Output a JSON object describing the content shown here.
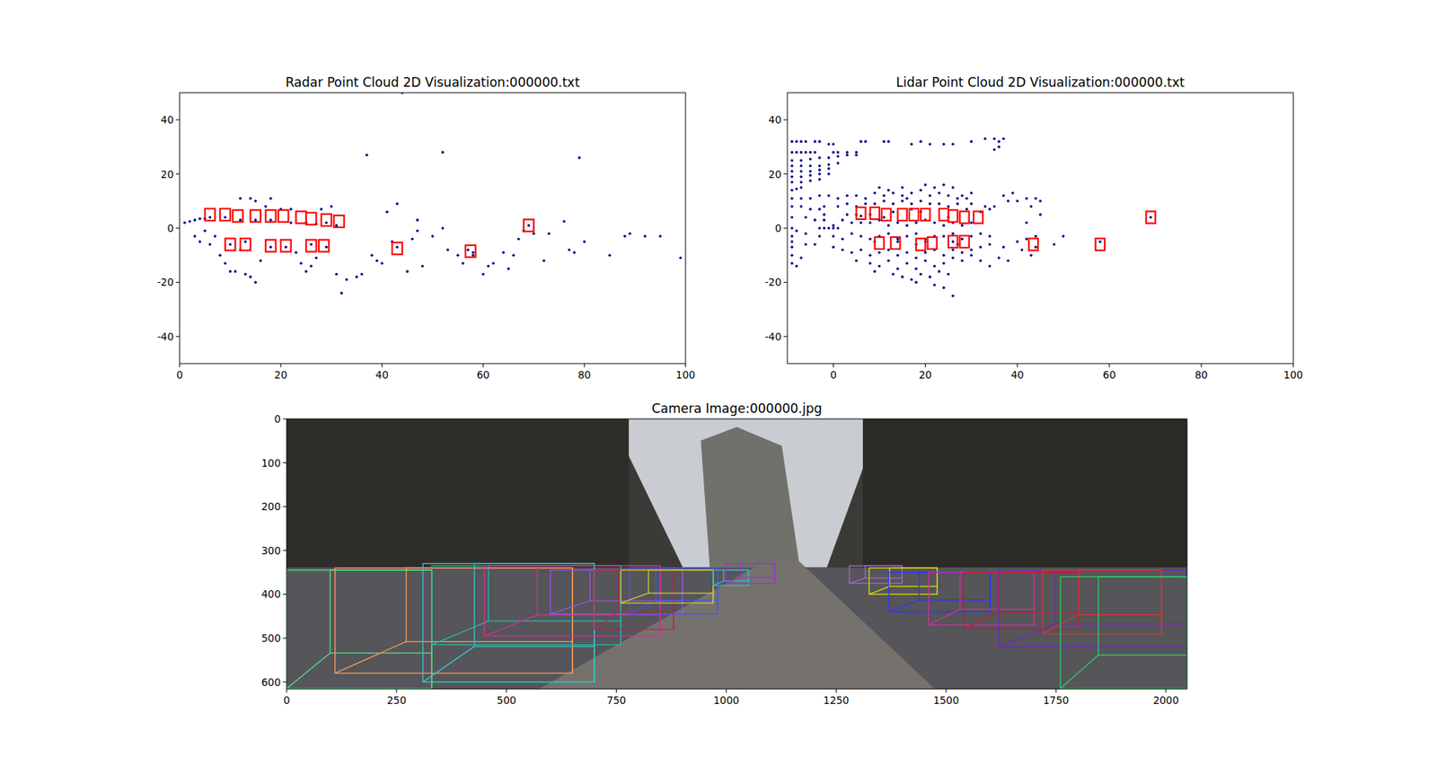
{
  "chart_data": [
    {
      "type": "scatter",
      "title": "Radar Point Cloud 2D Visualization:000000.txt",
      "xlim": [
        0,
        100
      ],
      "ylim": [
        -50,
        50
      ],
      "xticks": [
        0,
        20,
        40,
        60,
        80,
        100
      ],
      "yticks": [
        -40,
        -20,
        0,
        20,
        40
      ],
      "color": "#00008b",
      "x": [
        1,
        2,
        3,
        4,
        5,
        3,
        4,
        5,
        6,
        7,
        8,
        9,
        10,
        11,
        12,
        13,
        14,
        15,
        16,
        12,
        14,
        15,
        17,
        18,
        20,
        22,
        23,
        24,
        25,
        26,
        27,
        28,
        30,
        31,
        32,
        33,
        35,
        36,
        38,
        39,
        40,
        37,
        41,
        43,
        44,
        42,
        45,
        47,
        48,
        52,
        52,
        53,
        55,
        56,
        57,
        58,
        60,
        61,
        62,
        65,
        66,
        67,
        68,
        69,
        70,
        72,
        73,
        77,
        78,
        79,
        80,
        85,
        88,
        89,
        92,
        95,
        99,
        22,
        25,
        27,
        29,
        31,
        6,
        9,
        12,
        15,
        18,
        10,
        13,
        18,
        21,
        26,
        29,
        43,
        58,
        76,
        64,
        46,
        50,
        47
      ],
      "y": [
        2,
        2.5,
        3,
        3.5,
        3.5,
        -3,
        -5,
        -1,
        -6,
        -3,
        -10,
        -13,
        -16,
        -16,
        -8,
        -17,
        -18,
        -20,
        -12,
        11,
        11,
        10,
        8,
        11,
        7,
        7,
        -9,
        -13,
        -16,
        -14,
        -11,
        7,
        8,
        -17,
        -24,
        -19,
        -18,
        -17,
        -10,
        -12,
        -13,
        27,
        6,
        9,
        50,
        -5,
        -16,
        3,
        -14,
        28,
        0,
        -8,
        -10,
        -13,
        -8,
        -10,
        -17,
        -14,
        -13,
        -15,
        -10,
        -4,
        -1,
        1,
        -2,
        -12,
        -2,
        -8,
        -9,
        26,
        -5,
        -10,
        -3,
        -2,
        -3,
        -3,
        -11,
        2,
        2,
        1.5,
        2,
        1,
        4,
        4,
        3,
        3,
        3,
        -6,
        -5,
        -7,
        -7,
        -6,
        -7,
        -7,
        -9,
        2.5,
        -9,
        -4,
        -3,
        -1
      ],
      "boxes": {
        "color": "#ff0000",
        "x": [
          6,
          9,
          11.5,
          15,
          18,
          20.5,
          24,
          26,
          29,
          31.5,
          10,
          13,
          18,
          21,
          26,
          28.5,
          43,
          57.5,
          69
        ],
        "y": [
          5,
          5,
          4.5,
          4.5,
          4.5,
          4.5,
          4,
          3.5,
          3,
          2.5,
          -6,
          -6,
          -6.5,
          -6.5,
          -6.5,
          -6.5,
          -7.5,
          -8.5,
          1
        ],
        "width": [
          2,
          2,
          2,
          2,
          2,
          2,
          2,
          2,
          2,
          2,
          2,
          2,
          2,
          2,
          2,
          2,
          2,
          2,
          2
        ],
        "height": [
          4.4,
          4.4,
          4.4,
          4.4,
          4.4,
          4.4,
          4.4,
          4.4,
          4.4,
          4.4,
          4.4,
          4.4,
          4.4,
          4.4,
          4.4,
          4.4,
          4.4,
          4.4,
          4.4
        ]
      }
    },
    {
      "type": "scatter",
      "title": "Lidar Point Cloud 2D Visualization:000000.txt",
      "xlim": [
        -10,
        100
      ],
      "ylim": [
        -50,
        50
      ],
      "xticks": [
        0,
        20,
        40,
        60,
        80,
        100
      ],
      "yticks": [
        -40,
        -20,
        0,
        20,
        40
      ],
      "color": "#00008b",
      "x": [
        -9,
        -8,
        -7,
        -6,
        -4,
        -3,
        -1,
        0,
        6,
        7,
        11,
        12,
        17,
        19,
        21,
        24,
        26,
        30,
        33,
        35,
        36,
        36,
        35,
        37,
        -9,
        -8,
        -7,
        -6,
        -5,
        -4,
        0,
        1,
        3,
        5,
        -9,
        -7,
        -5,
        -3,
        -1,
        1,
        3,
        5,
        -9,
        -7,
        -5,
        -3,
        -1,
        1,
        -9,
        -7,
        -5,
        -3,
        -1,
        -9,
        -7,
        -5,
        -3,
        -1,
        -9,
        -7,
        -5,
        -3,
        -9,
        -8,
        -7,
        -9,
        -7,
        -5,
        -3,
        -1,
        1,
        3,
        5,
        7,
        9,
        11,
        13,
        15,
        17,
        19,
        21,
        23,
        25,
        27,
        29,
        30,
        32,
        34,
        -9,
        -7,
        -5,
        -3,
        -2,
        1,
        3,
        5,
        7,
        9,
        11,
        13,
        15,
        17,
        19,
        21,
        23,
        25,
        27,
        29,
        -9,
        -6,
        -4,
        -2,
        0,
        2,
        4,
        6,
        8,
        10,
        12,
        14,
        16,
        18,
        20,
        22,
        24,
        26,
        28,
        30,
        -3,
        -2,
        -1,
        0,
        1,
        -9,
        -6,
        -3,
        0,
        2,
        4,
        6,
        8,
        10,
        12,
        14,
        16,
        18,
        20,
        22,
        24,
        26,
        28,
        30,
        32,
        34,
        -9,
        -6,
        -4,
        0,
        2,
        4,
        6,
        8,
        10,
        12,
        14,
        16,
        18,
        20,
        22,
        24,
        26,
        28,
        30,
        32,
        34,
        37,
        40,
        44,
        -9,
        -7,
        5,
        8,
        10,
        12,
        14,
        16,
        18,
        20,
        22,
        24,
        26,
        28,
        -9,
        -8,
        9,
        13,
        15,
        17,
        19,
        21,
        23,
        25,
        22,
        24,
        26,
        18,
        30,
        32,
        34,
        36,
        38,
        42,
        44,
        40,
        42,
        44,
        43,
        37,
        39,
        45,
        33,
        35,
        38,
        45,
        41,
        43,
        20,
        22,
        15,
        12,
        10,
        26,
        24,
        28,
        30,
        16,
        17,
        5,
        8,
        -2,
        -9,
        -8,
        -9,
        58,
        69,
        50,
        48,
        42,
        25,
        19,
        13,
        11,
        26,
        27,
        20,
        18,
        14,
        9,
        6,
        3
      ],
      "y": [
        32,
        32,
        32,
        32,
        32,
        32,
        31,
        31,
        32,
        32,
        32,
        32,
        31,
        32,
        31,
        31,
        31,
        32,
        33,
        33,
        32,
        30,
        29,
        33,
        28,
        28,
        28,
        28,
        28,
        28,
        28,
        28,
        28,
        28,
        25,
        25,
        25.5,
        26,
        26,
        26.5,
        27,
        27,
        23,
        23,
        23,
        23,
        23.5,
        24,
        21,
        21,
        21,
        21.5,
        22,
        19,
        19,
        19.5,
        20,
        20,
        17,
        17,
        17.5,
        18,
        14,
        14.5,
        15,
        11,
        11,
        11,
        12,
        12,
        11,
        12,
        12,
        11,
        13,
        12,
        13,
        12,
        13,
        14,
        12,
        13,
        12,
        11,
        11,
        9,
        6,
        7,
        8,
        8,
        7,
        7,
        8,
        8,
        9,
        8,
        9,
        9,
        10,
        9,
        10,
        9,
        10,
        9,
        9,
        8,
        9,
        7,
        4,
        4,
        3,
        3,
        1,
        3,
        2,
        2,
        2,
        3,
        1,
        2,
        1,
        2,
        3,
        2,
        1,
        2,
        1,
        2,
        0,
        0,
        0,
        0,
        0,
        -3,
        -2,
        -3,
        -3,
        -4,
        -2,
        -3,
        -4,
        -3,
        -2,
        -4,
        -3,
        -2,
        -4,
        -3,
        -3,
        -2,
        -4,
        -3,
        -2,
        -3,
        -7,
        -6,
        -6,
        -7,
        -8,
        -9,
        -8,
        -10,
        -9,
        -8,
        -10,
        -9,
        -11,
        -9,
        -8,
        -10,
        -8,
        -9,
        -8,
        -7,
        -6,
        -7,
        -5,
        -7,
        -10,
        -11,
        -12,
        -13,
        -14,
        -12,
        -15,
        -13,
        -15,
        -12,
        -14,
        -13,
        -11,
        -12,
        -13,
        -14,
        -16,
        -17,
        -18,
        -19,
        -17,
        -18,
        -16,
        -17,
        -21,
        -22,
        -25,
        -20,
        -10,
        -12,
        -14,
        -11,
        -12,
        -4,
        -3,
        10,
        11,
        11,
        8,
        12,
        13,
        10,
        8,
        8,
        10,
        5,
        -8,
        -10,
        16,
        15,
        15,
        14,
        15,
        15,
        16,
        12,
        13,
        11,
        7,
        5,
        5,
        5,
        0,
        -1,
        -5,
        -5,
        4,
        -3,
        -6,
        2,
        4,
        6,
        6,
        4,
        -5,
        -6,
        -5,
        -6,
        -5,
        -5,
        4.5,
        5
      ],
      "boxes": {
        "color": "#ff0000",
        "x": [
          6,
          9,
          11.5,
          15,
          17.5,
          20,
          24,
          26,
          28.5,
          31.5,
          10,
          13.5,
          19,
          21.5,
          26,
          28.5,
          43.5,
          58,
          69
        ],
        "y": [
          5.5,
          5.5,
          5,
          5,
          5,
          5,
          5,
          4.5,
          4,
          4,
          -5.5,
          -5.5,
          -6,
          -5.5,
          -5,
          -5,
          -6,
          -6,
          4
        ],
        "width": [
          2,
          2,
          2,
          2,
          2,
          2,
          2,
          2,
          2,
          2,
          2,
          2,
          2,
          2,
          2,
          2,
          2,
          2,
          2
        ],
        "height": [
          4.4,
          4.4,
          4.4,
          4.4,
          4.4,
          4.4,
          4.4,
          4.4,
          4.4,
          4.4,
          4.4,
          4.4,
          4.4,
          4.4,
          4.4,
          4.4,
          4.4,
          4.4,
          4.4
        ]
      }
    },
    {
      "type": "image",
      "title": "Camera Image:000000.jpg",
      "xlim": [
        0,
        2048
      ],
      "ylim": [
        616,
        0
      ],
      "xticks": [
        0,
        250,
        500,
        750,
        1000,
        1250,
        1500,
        1750,
        2000
      ],
      "yticks": [
        0,
        100,
        200,
        300,
        400,
        500,
        600
      ],
      "boxes": {
        "x0": [
          0,
          110,
          310,
          330,
          450,
          600,
          700,
          780,
          760,
          970,
          1000,
          1280,
          1325,
          1370,
          1460,
          1540,
          1620,
          1720,
          1760
        ],
        "y0": [
          345,
          340,
          330,
          335,
          335,
          345,
          345,
          340,
          345,
          345,
          330,
          335,
          340,
          350,
          350,
          350,
          345,
          345,
          360
        ],
        "x1": [
          330,
          650,
          700,
          760,
          850,
          900,
          880,
          980,
          970,
          1050,
          1110,
          1400,
          1480,
          1600,
          1700,
          1800,
          2048,
          1990,
          2048
        ],
        "y1": [
          615,
          580,
          600,
          515,
          495,
          445,
          480,
          445,
          420,
          380,
          375,
          375,
          400,
          440,
          470,
          480,
          520,
          490,
          615
        ],
        "colors": [
          "#55dd88",
          "#ff9955",
          "#33cccc",
          "#22bbaa",
          "#cc3399",
          "#9955dd",
          "#bb2244",
          "#4455ee",
          "#cccc33",
          "#33bbcc",
          "#9933cc",
          "#aa66cc",
          "#dddd00",
          "#3333ff",
          "#cc3399",
          "#bb2233",
          "#7722cc",
          "#dd3333",
          "#33cc66"
        ]
      }
    }
  ]
}
